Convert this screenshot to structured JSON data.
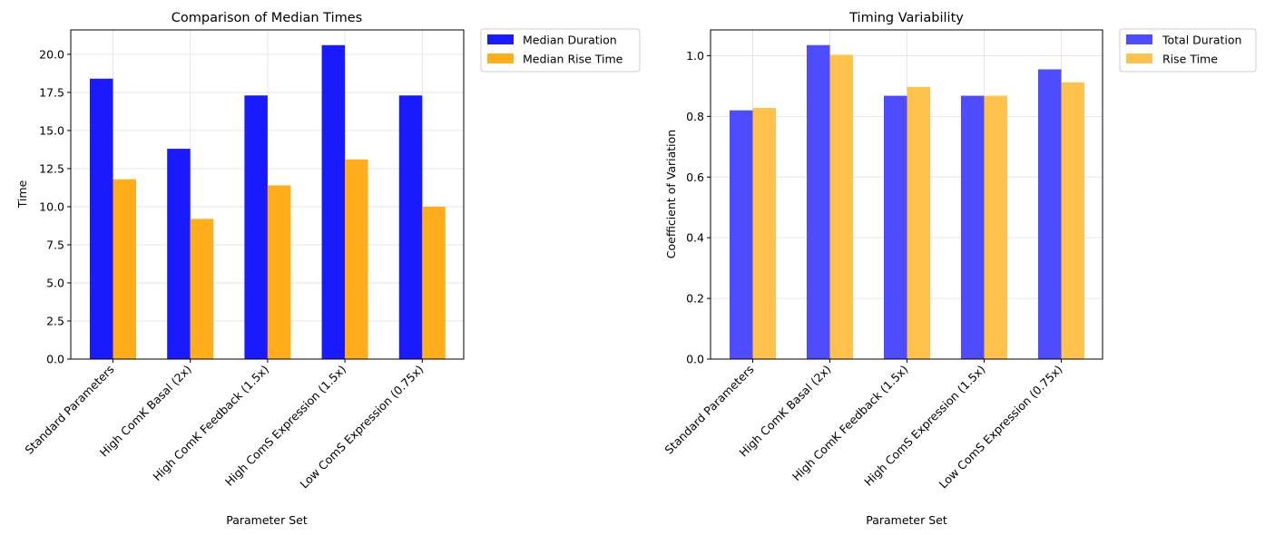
{
  "chart_data": [
    {
      "type": "bar",
      "title": "Comparison of Median Times",
      "xlabel": "Parameter Set",
      "ylabel": "Time",
      "categories": [
        "Standard Parameters",
        "High ComK Basal (2x)",
        "High ComK Feedback (1.5x)",
        "High ComS Expression (1.5x)",
        "Low ComS Expression (0.75x)"
      ],
      "ylim": [
        0,
        21.6
      ],
      "yticks": [
        0.0,
        2.5,
        5.0,
        7.5,
        10.0,
        12.5,
        15.0,
        17.5,
        20.0
      ],
      "ytick_labels": [
        "0.0",
        "2.5",
        "5.0",
        "7.5",
        "10.0",
        "12.5",
        "15.0",
        "17.5",
        "20.0"
      ],
      "grid": true,
      "legend_position": "outside top-right",
      "series": [
        {
          "name": "Median Duration",
          "color": "#1a1aff",
          "values": [
            18.4,
            13.8,
            17.3,
            20.6,
            17.3
          ]
        },
        {
          "name": "Median Rise Time",
          "color": "#ffad1a",
          "values": [
            11.8,
            9.2,
            11.4,
            13.1,
            10.0
          ]
        }
      ]
    },
    {
      "type": "bar",
      "title": "Timing Variability",
      "xlabel": "Parameter Set",
      "ylabel": "Coefficient of Variation",
      "categories": [
        "Standard Parameters",
        "High ComK Basal (2x)",
        "High ComK Feedback (1.5x)",
        "High ComS Expression (1.5x)",
        "Low ComS Expression (0.75x)"
      ],
      "ylim": [
        0,
        1.085
      ],
      "yticks": [
        0.0,
        0.2,
        0.4,
        0.6,
        0.8,
        1.0
      ],
      "ytick_labels": [
        "0.0",
        "0.2",
        "0.4",
        "0.6",
        "0.8",
        "1.0"
      ],
      "grid": true,
      "legend_position": "outside top-right",
      "series": [
        {
          "name": "Total Duration",
          "color": "#4d4dff",
          "values": [
            0.82,
            1.035,
            0.868,
            0.868,
            0.955
          ]
        },
        {
          "name": "Rise Time",
          "color": "#ffc24d",
          "values": [
            0.828,
            1.003,
            0.897,
            0.868,
            0.912
          ]
        }
      ]
    }
  ]
}
